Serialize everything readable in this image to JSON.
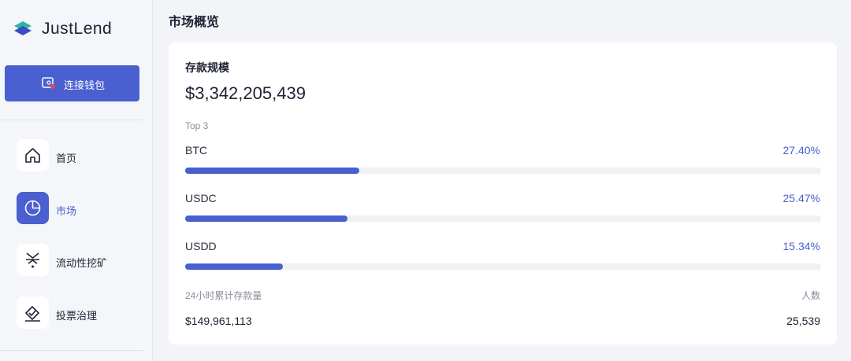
{
  "sidebar": {
    "logo": "JustLend",
    "connect_button": "连接钱包",
    "nav": [
      "首页",
      "市场",
      "流动性挖矿",
      "投票治理"
    ]
  },
  "main": {
    "title": "市场概览",
    "card": {
      "title": "存款规模",
      "total": "$3,342,205,439",
      "top_label": "Top 3",
      "items": [
        {
          "name": "BTC",
          "value": 27.4,
          "label": "27.40%"
        },
        {
          "name": "USDC",
          "value": 25.47,
          "label": "25.47%"
        },
        {
          "name": "USDD",
          "value": 15.34,
          "label": "15.34%"
        }
      ],
      "volume_label": "24小时累计存款量",
      "volume": "$149,961,113",
      "users_label": "人数",
      "users": "25,539"
    }
  }
}
